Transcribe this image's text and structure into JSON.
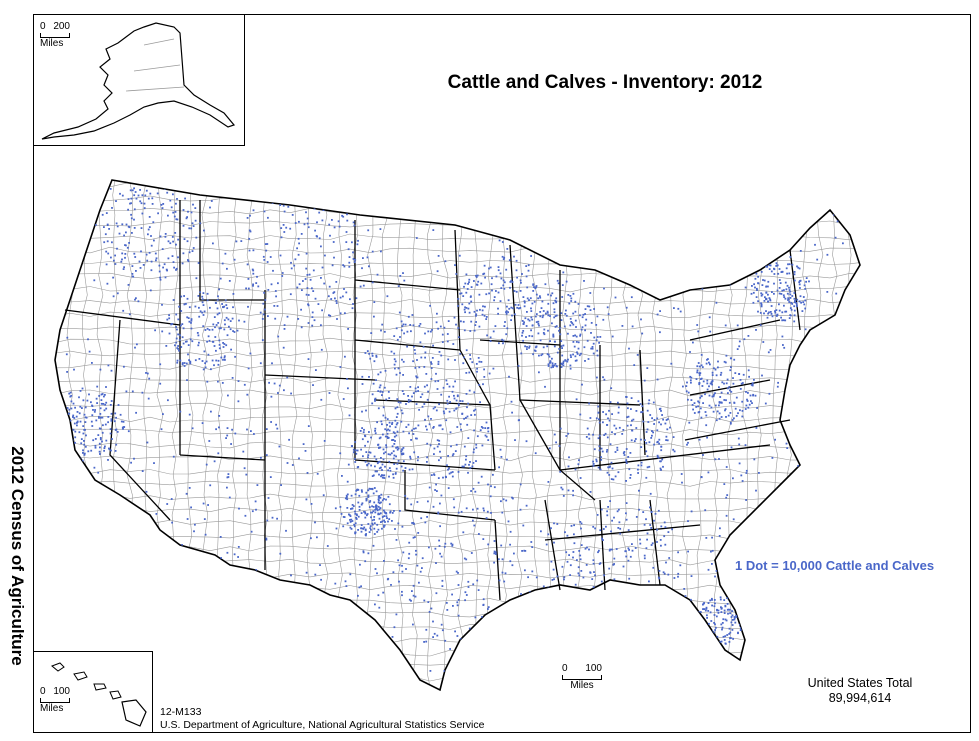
{
  "map": {
    "title": "Cattle and Calves - Inventory:  2012",
    "side_label": "2012 Census of Agriculture",
    "legend": "1 Dot = 10,000 Cattle and Calves",
    "total_label": "United States Total",
    "total_value": "89,994,614",
    "map_id": "12-M133",
    "source": "U.S. Department of Agriculture, National Agricultural Statistics Service",
    "dot_color": "#4a67c9",
    "state_border_color": "#000000",
    "county_border_color": "#9a9a9a"
  },
  "scales": {
    "alaska": {
      "min": "0",
      "max": "200",
      "unit": "Miles"
    },
    "hawaii": {
      "min": "0",
      "max": "100",
      "unit": "Miles"
    },
    "mainland": {
      "min": "0",
      "max": "100",
      "unit": "Miles"
    }
  }
}
